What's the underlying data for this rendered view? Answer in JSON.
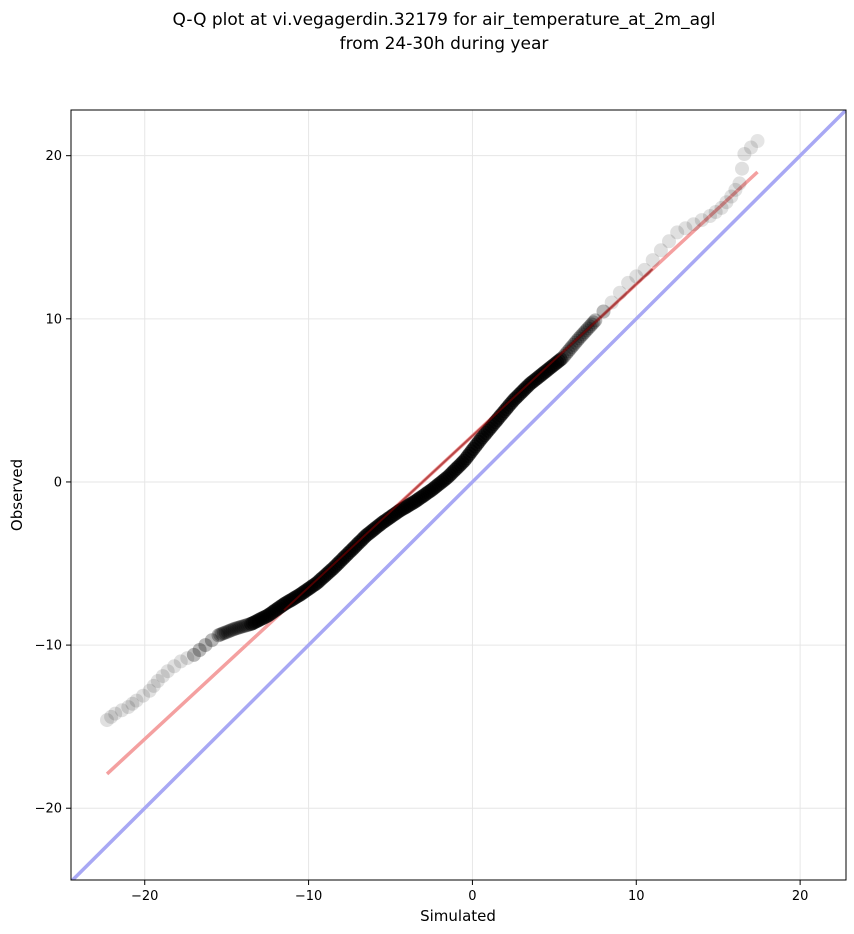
{
  "chart_data": {
    "type": "scatter",
    "title": "Q-Q plot at vi.vegagerdin.32179 for air_temperature_at_2m_agl",
    "subtitle": "from 24-30h during year",
    "xlabel": "Simulated",
    "ylabel": "Observed",
    "xlim": [
      -24.5,
      22.8
    ],
    "ylim": [
      -24.4,
      22.8
    ],
    "xticks": [
      -20,
      -10,
      0,
      10,
      20
    ],
    "yticks": [
      -20,
      -10,
      0,
      10,
      20
    ],
    "xtick_labels": [
      "−20",
      "−10",
      "0",
      "10",
      "20"
    ],
    "ytick_labels": [
      "−20",
      "−10",
      "0",
      "10",
      "20"
    ],
    "grid": true,
    "colors": {
      "points": "#000000",
      "fit_line": "#f4a0a0",
      "identity_line": "#a8a8f4",
      "fit_core": "#8b0000"
    },
    "fit_line": {
      "x": [
        -22.3,
        17.4
      ],
      "y": [
        -17.9,
        19.0
      ]
    },
    "identity_line": {
      "x": [
        -24.5,
        22.8
      ],
      "y": [
        -24.5,
        22.8
      ]
    },
    "quantile_curve": [
      [
        -22.3,
        -14.6
      ],
      [
        -21.8,
        -14.2
      ],
      [
        -21.0,
        -13.8
      ],
      [
        -20.5,
        -13.4
      ],
      [
        -19.7,
        -12.8
      ],
      [
        -19.2,
        -12.2
      ],
      [
        -18.6,
        -11.6
      ],
      [
        -17.8,
        -11.0
      ],
      [
        -17.0,
        -10.6
      ],
      [
        -16.3,
        -10.0
      ],
      [
        -15.5,
        -9.4
      ],
      [
        -14.5,
        -9.0
      ],
      [
        -13.5,
        -8.7
      ],
      [
        -12.5,
        -8.2
      ],
      [
        -11.5,
        -7.5
      ],
      [
        -10.5,
        -6.9
      ],
      [
        -9.5,
        -6.2
      ],
      [
        -8.5,
        -5.3
      ],
      [
        -7.5,
        -4.3
      ],
      [
        -6.5,
        -3.3
      ],
      [
        -5.5,
        -2.5
      ],
      [
        -4.5,
        -1.8
      ],
      [
        -3.5,
        -1.2
      ],
      [
        -2.5,
        -0.5
      ],
      [
        -1.5,
        0.3
      ],
      [
        -0.5,
        1.3
      ],
      [
        0.5,
        2.6
      ],
      [
        1.5,
        3.8
      ],
      [
        2.5,
        5.0
      ],
      [
        3.5,
        6.0
      ],
      [
        4.5,
        6.8
      ],
      [
        5.5,
        7.6
      ],
      [
        6.5,
        8.8
      ],
      [
        7.5,
        9.9
      ],
      [
        8.5,
        11.0
      ],
      [
        9.5,
        12.2
      ],
      [
        10.5,
        13.0
      ],
      [
        11.5,
        14.2
      ],
      [
        12.5,
        15.3
      ],
      [
        13.5,
        15.8
      ],
      [
        14.5,
        16.3
      ],
      [
        15.2,
        16.8
      ],
      [
        15.8,
        17.5
      ],
      [
        16.3,
        18.3
      ],
      [
        16.6,
        20.1
      ],
      [
        17.4,
        20.9
      ]
    ]
  }
}
